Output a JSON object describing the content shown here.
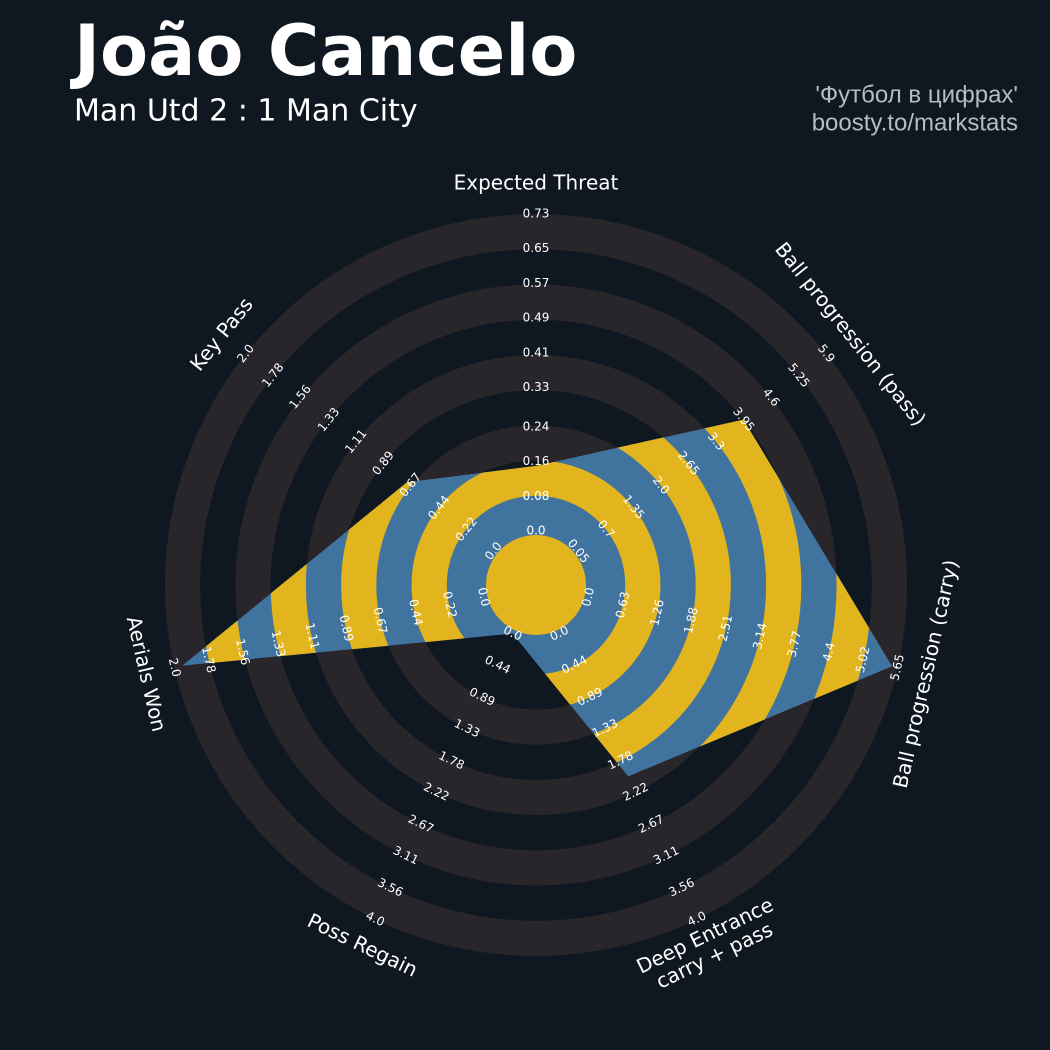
{
  "chart_data": {
    "type": "radar",
    "title": "João Cancelo",
    "subtitle": "Man Utd 2 : 1 Man City",
    "credits": [
      "'Футбол в цифрах'",
      "boosty.to/markstats"
    ],
    "categories": [
      "Expected Threat",
      "Ball progression (pass)",
      "Ball progression (carry)",
      "Deep Entrance\ncarry + pass",
      "Poss Regain",
      "Aerials Won",
      "Key Pass"
    ],
    "values": [
      0.15,
      3.95,
      5.55,
      2.0,
      0,
      1.95,
      0.7
    ],
    "lims": [
      [
        0,
        0.73
      ],
      [
        0.05,
        5.9
      ],
      [
        0,
        5.65
      ],
      [
        0,
        4
      ],
      [
        0,
        4
      ],
      [
        0,
        2
      ],
      [
        0,
        2
      ]
    ],
    "ticks": [
      [
        {
          "value": 0,
          "label": "0.0"
        },
        0.08,
        0.16,
        0.24,
        0.33,
        0.41,
        0.49,
        0.57,
        0.65,
        0.73
      ],
      [
        0.05,
        0.7,
        1.35,
        {
          "value": 2,
          "label": "2.0"
        },
        2.65,
        3.3,
        3.95,
        4.6,
        5.25,
        5.9
      ],
      [
        {
          "value": 0,
          "label": "0.0"
        },
        0.63,
        1.26,
        1.88,
        2.51,
        3.14,
        3.77,
        4.4,
        5.02,
        5.65
      ],
      [
        {
          "value": 0,
          "label": "0.0"
        },
        0.44,
        0.89,
        1.33,
        1.78,
        2.22,
        2.67,
        3.11,
        3.56,
        {
          "value": 4,
          "label": "4.0"
        }
      ],
      [
        {
          "value": 0,
          "label": "0.0"
        },
        0.44,
        0.89,
        1.33,
        1.78,
        2.22,
        2.67,
        3.11,
        3.56,
        {
          "value": 4,
          "label": "4.0"
        }
      ],
      [
        {
          "value": 0,
          "label": "0.0"
        },
        0.22,
        0.44,
        0.67,
        0.89,
        1.11,
        1.33,
        1.56,
        1.78,
        {
          "value": 2,
          "label": "2.0"
        }
      ],
      [
        {
          "value": 0,
          "label": "0.0"
        },
        0.22,
        0.44,
        0.67,
        0.89,
        1.11,
        1.33,
        1.56,
        1.78,
        {
          "value": 2,
          "label": "2.0"
        }
      ]
    ],
    "color": "#41739f",
    "ring_color": "#e2b41e",
    "band_color": "#28252b"
  }
}
